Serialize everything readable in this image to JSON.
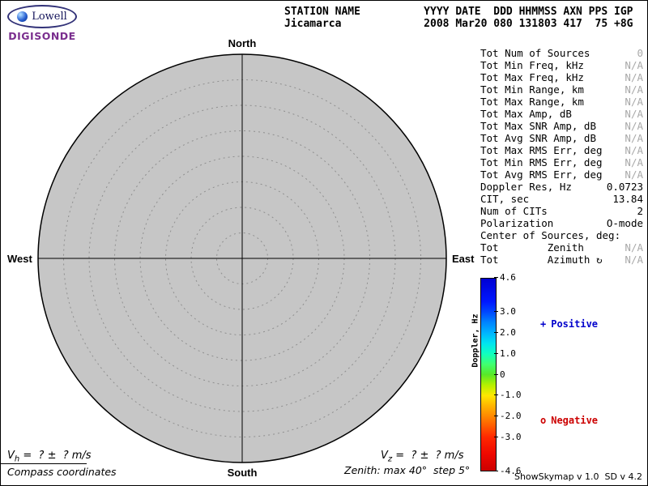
{
  "app": {
    "credit": "ShowSkymap v 1.0  SD v 4.2"
  },
  "logo": {
    "brand": "Lowell",
    "product": "DIGISONDE"
  },
  "header": {
    "line1": "STATION NAME          YYYY DATE  DDD HHMMSS AXN PPS IGP",
    "line2": "Jicamarca             2008 Mar20 080 131803 417  75 +8G"
  },
  "compass": {
    "north": "North",
    "south": "South",
    "east": "East",
    "west": "West",
    "max_zenith_deg": 40,
    "step_deg": 5,
    "fill_color": "#c6c6c6"
  },
  "stats": {
    "rows": [
      {
        "label": "Tot Num of Sources",
        "value": "0",
        "muted": true
      },
      {
        "label": "Tot Min Freq, kHz",
        "value": "N/A",
        "muted": true
      },
      {
        "label": "Tot Max Freq, kHz",
        "value": "N/A",
        "muted": true
      },
      {
        "label": "Tot Min Range, km",
        "value": "N/A",
        "muted": true
      },
      {
        "label": "Tot Max Range, km",
        "value": "N/A",
        "muted": true
      },
      {
        "label": "Tot Max Amp, dB",
        "value": "N/A",
        "muted": true
      },
      {
        "label": "Tot Max SNR Amp, dB",
        "value": "N/A",
        "muted": true
      },
      {
        "label": "Tot Avg SNR Amp, dB",
        "value": "N/A",
        "muted": true
      },
      {
        "label": "Tot Max RMS Err, deg",
        "value": "N/A",
        "muted": true
      },
      {
        "label": "Tot Min RMS Err, deg",
        "value": "N/A",
        "muted": true
      },
      {
        "label": "Tot Avg RMS Err, deg",
        "value": "N/A",
        "muted": true
      },
      {
        "label": "Doppler Res, Hz",
        "value": "0.0723",
        "muted": false
      },
      {
        "label": "CIT, sec",
        "value": "13.84",
        "muted": false
      },
      {
        "label": "Num of CITs",
        "value": "2",
        "muted": false
      },
      {
        "label": "Polarization",
        "value": "O-mode",
        "muted": false
      },
      {
        "label": "Center of Sources, deg:",
        "value": "",
        "muted": false
      },
      {
        "label": "Tot        Zenith",
        "value": "N/A",
        "muted": true
      },
      {
        "label": "Tot        Azimuth ↻",
        "value": "N/A",
        "muted": true
      }
    ]
  },
  "colorbar": {
    "title": "Doppler, Hz",
    "max": 4.6,
    "min": -4.6,
    "ticks": [
      {
        "value": 4.6,
        "label": "4.6"
      },
      {
        "value": 3.0,
        "label": "3.0"
      },
      {
        "value": 2.0,
        "label": "2.0"
      },
      {
        "value": 1.0,
        "label": "1.0"
      },
      {
        "value": 0,
        "label": "0"
      },
      {
        "value": -1.0,
        "label": "-1.0"
      },
      {
        "value": -2.0,
        "label": "-2.0"
      },
      {
        "value": -3.0,
        "label": "-3.0"
      },
      {
        "value": -4.6,
        "label": "-4.6"
      }
    ],
    "gradient": [
      {
        "value": 4.6,
        "color": "#0000d2"
      },
      {
        "value": 3.5,
        "color": "#0018ff"
      },
      {
        "value": 3.0,
        "color": "#0048ff"
      },
      {
        "value": 2.5,
        "color": "#0084ff"
      },
      {
        "value": 2.0,
        "color": "#00b4ff"
      },
      {
        "value": 1.5,
        "color": "#00e4f0"
      },
      {
        "value": 1.0,
        "color": "#10ffc0"
      },
      {
        "value": 0.5,
        "color": "#40ff70"
      },
      {
        "value": 0.0,
        "color": "#58e828"
      },
      {
        "value": -0.5,
        "color": "#b4f000"
      },
      {
        "value": -1.0,
        "color": "#ffe800"
      },
      {
        "value": -1.5,
        "color": "#ffb400"
      },
      {
        "value": -2.0,
        "color": "#ff8800"
      },
      {
        "value": -2.5,
        "color": "#ff5800"
      },
      {
        "value": -3.0,
        "color": "#ff2800"
      },
      {
        "value": -3.8,
        "color": "#ee0800"
      },
      {
        "value": -4.6,
        "color": "#cc0000"
      }
    ],
    "positive": {
      "marker": "+",
      "label": "Positive",
      "color": "#0000cc"
    },
    "negative": {
      "marker": "o",
      "label": "Negative",
      "color": "#cc0000"
    }
  },
  "footer": {
    "vh": {
      "base": "V",
      "sub": "h",
      "rest": " =  ? ±  ? m/s"
    },
    "vz": {
      "base": "V",
      "sub": "z",
      "rest": " =  ? ±  ? m/s"
    },
    "coords_note": "Compass coordinates",
    "zenith_note": "Zenith: max 40°  step 5°"
  }
}
